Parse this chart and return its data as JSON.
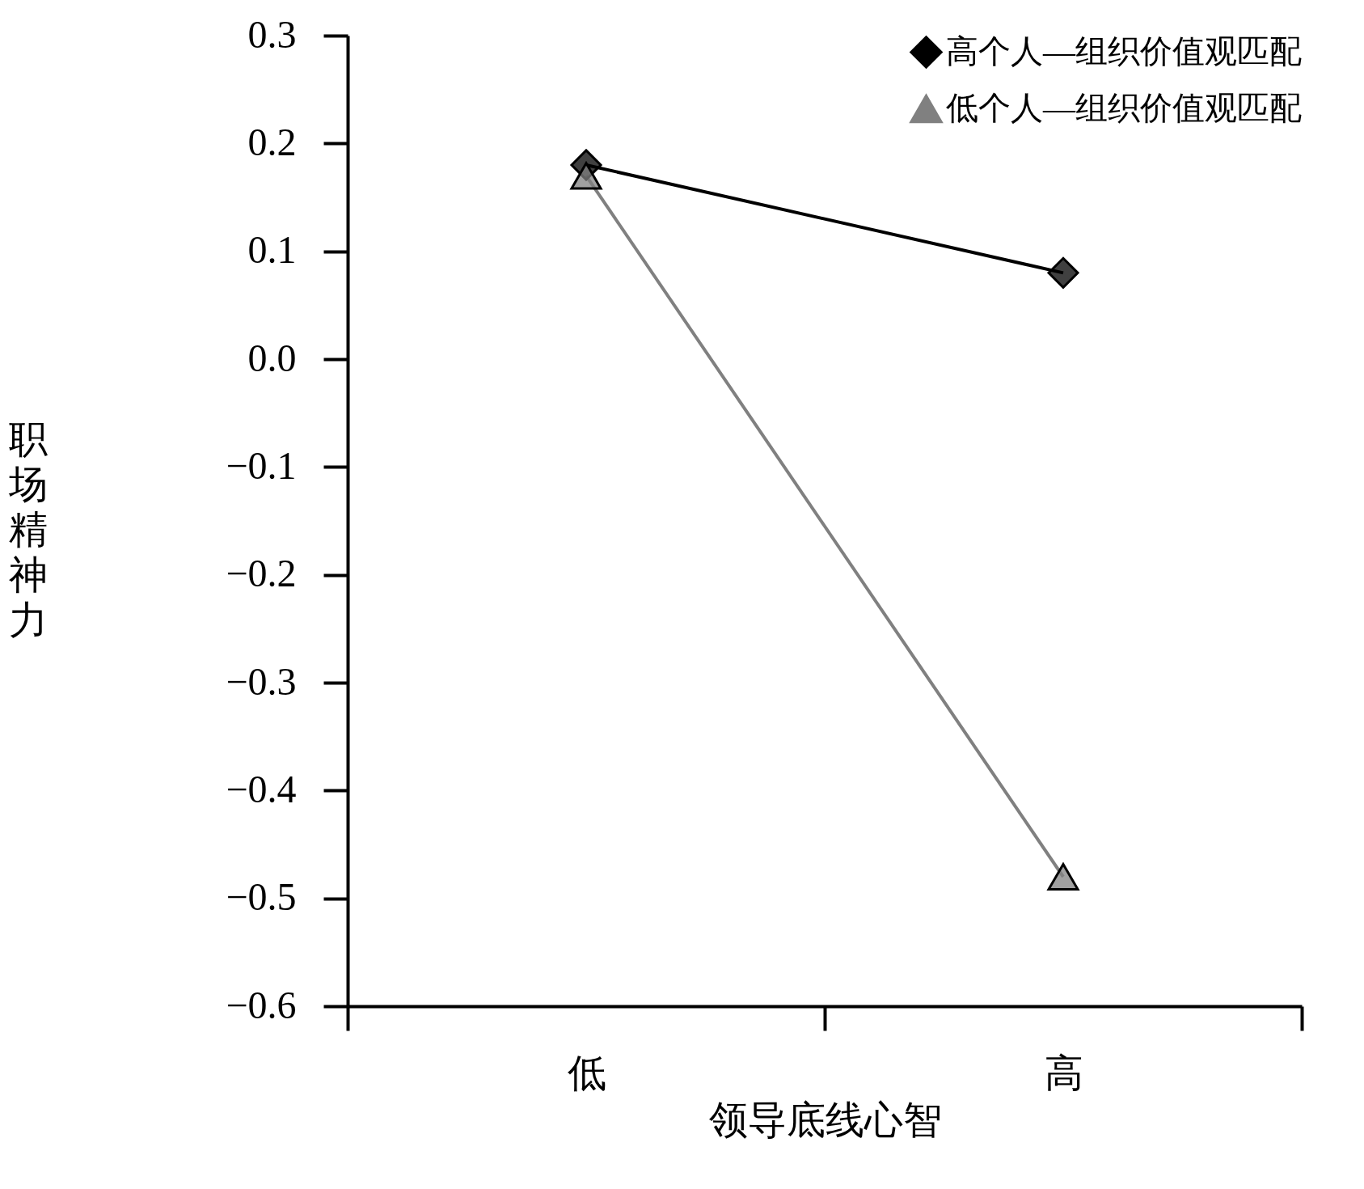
{
  "chart_data": {
    "type": "line",
    "xlabel": "领导底线心智",
    "ylabel": "职场精神力",
    "categories": [
      "低",
      "高"
    ],
    "series": [
      {
        "name": "高个人—组织价值观匹配",
        "color": "#000000",
        "marker": "diamond",
        "values": [
          0.18,
          0.08
        ]
      },
      {
        "name": "低个人—组织价值观匹配",
        "color": "#808080",
        "marker": "triangle",
        "values": [
          0.17,
          -0.48
        ]
      }
    ],
    "ylim": [
      -0.6,
      0.3
    ],
    "yticks": [
      -0.6,
      -0.5,
      -0.4,
      -0.3,
      -0.2,
      -0.1,
      {
        "value": 0,
        "label": "0.0"
      },
      0.1,
      0.2,
      0.3
    ],
    "grid": false,
    "legend": "top right"
  }
}
